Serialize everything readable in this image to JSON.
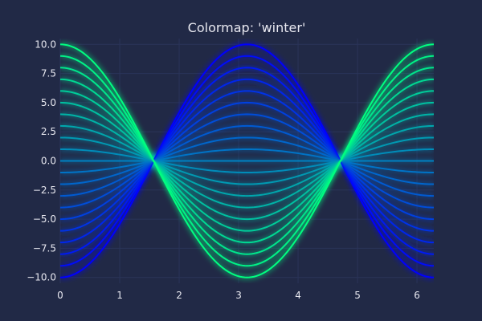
{
  "chart_data": {
    "type": "line",
    "title": "Colormap: 'winter'",
    "xlabel": "",
    "ylabel": "",
    "xlim": [
      0,
      6.283
    ],
    "ylim": [
      -10.5,
      10.5
    ],
    "x_ticks": [
      0,
      1,
      2,
      3,
      4,
      5,
      6
    ],
    "x_tick_labels": [
      "0",
      "1",
      "2",
      "3",
      "4",
      "5",
      "6"
    ],
    "y_ticks": [
      10.0,
      7.5,
      5.0,
      2.5,
      0.0,
      -2.5,
      -5.0,
      -7.5,
      -10.0
    ],
    "y_tick_labels": [
      "10.0",
      "7.5",
      "5.0",
      "2.5",
      "0.0",
      "−2.5",
      "−5.0",
      "−7.5",
      "−10.0"
    ],
    "grid": true,
    "legend": "none",
    "colormap": "winter",
    "glow_effect": true,
    "function": "y = a * cos(x)",
    "x_range": [
      0,
      6.283
    ],
    "series": [
      {
        "amplitude": -10,
        "color": "#0000ff"
      },
      {
        "amplitude": -9,
        "color": "#000dfa"
      },
      {
        "amplitude": -8,
        "color": "#001af3"
      },
      {
        "amplitude": -7,
        "color": "#0026ec"
      },
      {
        "amplitude": -6,
        "color": "#0033e6"
      },
      {
        "amplitude": -5,
        "color": "#0040e0"
      },
      {
        "amplitude": -4,
        "color": "#004dd9"
      },
      {
        "amplitude": -3,
        "color": "#005ad2"
      },
      {
        "amplitude": -2,
        "color": "#0066cc"
      },
      {
        "amplitude": -1,
        "color": "#0073c6"
      },
      {
        "amplitude": 0,
        "color": "#0080c0"
      },
      {
        "amplitude": 1,
        "color": "#008cb9"
      },
      {
        "amplitude": 2,
        "color": "#0099b2"
      },
      {
        "amplitude": 3,
        "color": "#00a6ac"
      },
      {
        "amplitude": 4,
        "color": "#00b3a6"
      },
      {
        "amplitude": 5,
        "color": "#00c0a0"
      },
      {
        "amplitude": 6,
        "color": "#00cc99"
      },
      {
        "amplitude": 7,
        "color": "#00d992"
      },
      {
        "amplitude": 8,
        "color": "#00e68c"
      },
      {
        "amplitude": 9,
        "color": "#00f386"
      },
      {
        "amplitude": 10,
        "color": "#00ff80"
      }
    ],
    "background_color": "#212946",
    "grid_color": "#2a3459",
    "text_color": "#e8e8f0"
  }
}
